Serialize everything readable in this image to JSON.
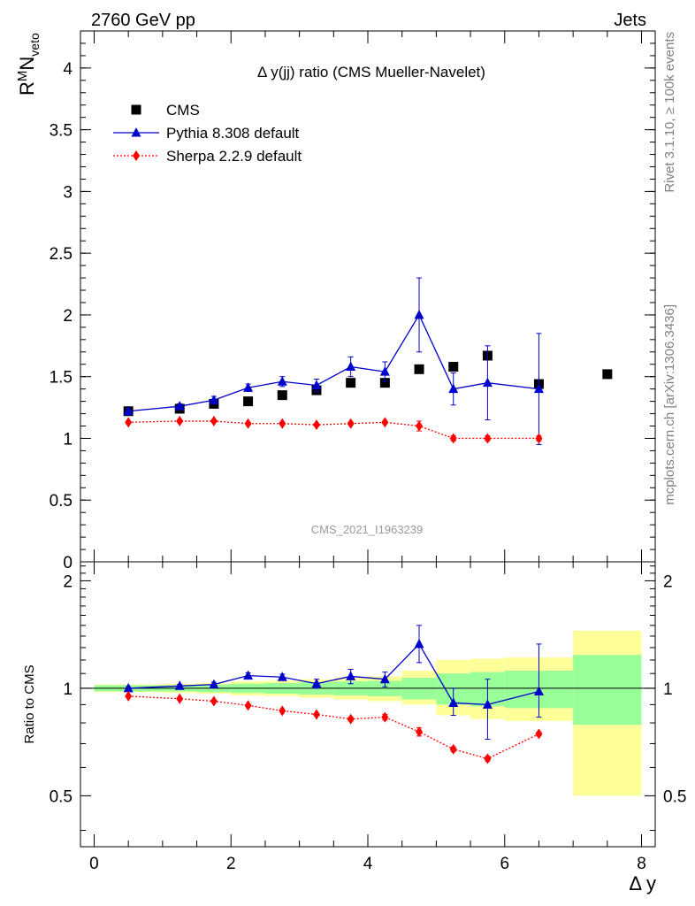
{
  "header": {
    "left": "2760 GeV pp",
    "right": "Jets",
    "side_top": "Rivet 3.1.10, ≥ 100k events",
    "side_bottom": "mcplots.cern.ch [arXiv:1306.3436]"
  },
  "chart_data": {
    "type": "scatter",
    "title": "Δ y(jj) ratio (CMS Mueller-Navelet)",
    "watermark": "CMS_2021_I1963239",
    "xlabel": "Δ y",
    "ylabel": "R^M N_veto",
    "ylabel_parts": {
      "base": "R",
      "sup": "M",
      "main": "N",
      "sub": "veto"
    },
    "ratio_ylabel": "Ratio to CMS",
    "xlim": [
      -0.2,
      8.2
    ],
    "ylim": [
      0,
      4.3
    ],
    "ratio_ylim": [
      0.36,
      2.26
    ],
    "x_ticks": [
      0,
      2,
      4,
      6,
      8
    ],
    "x_tick_labels": [
      "0",
      "2",
      "4",
      "6",
      "8"
    ],
    "y_ticks": [
      0,
      0.5,
      1,
      1.5,
      2,
      2.5,
      3,
      3.5,
      4
    ],
    "y_tick_labels": [
      "0",
      "0.5",
      "1",
      "1.5",
      "2",
      "2.5",
      "3",
      "3.5",
      "4"
    ],
    "ratio_ticks": [
      0.5,
      1,
      2
    ],
    "ratio_tick_labels": [
      "0.5",
      "1",
      "2"
    ],
    "legend": {
      "placement": "top-left"
    },
    "series": [
      {
        "name": "CMS",
        "marker": "square",
        "color": "#000000",
        "x": [
          0.5,
          1.25,
          1.75,
          2.25,
          2.75,
          3.25,
          3.75,
          4.25,
          4.75,
          5.25,
          5.75,
          6.5,
          7.5
        ],
        "y": [
          1.22,
          1.24,
          1.28,
          1.3,
          1.35,
          1.39,
          1.45,
          1.45,
          1.56,
          1.58,
          1.67,
          1.44,
          1.52
        ]
      },
      {
        "name": "Pythia 8.308 default",
        "marker": "triangle",
        "color": "#0000cc",
        "line": "solid",
        "x": [
          0.5,
          1.25,
          1.75,
          2.25,
          2.75,
          3.25,
          3.75,
          4.25,
          4.75,
          5.25,
          5.75,
          6.5
        ],
        "y": [
          1.22,
          1.26,
          1.31,
          1.41,
          1.46,
          1.43,
          1.58,
          1.54,
          2.0,
          1.4,
          1.45,
          1.4
        ],
        "err": [
          0.02,
          0.02,
          0.03,
          0.03,
          0.04,
          0.05,
          0.08,
          0.08,
          0.3,
          0.13,
          0.3,
          0.45
        ]
      },
      {
        "name": "Sherpa 2.2.9 default",
        "marker": "diamond",
        "color": "#ff0000",
        "line": "dotted",
        "x": [
          0.5,
          1.25,
          1.75,
          2.25,
          2.75,
          3.25,
          3.75,
          4.25,
          4.75,
          5.25,
          5.75,
          6.5
        ],
        "y": [
          1.13,
          1.14,
          1.14,
          1.12,
          1.12,
          1.11,
          1.12,
          1.13,
          1.1,
          1.0,
          1.0,
          1.0
        ],
        "err": [
          0.01,
          0.01,
          0.01,
          0.01,
          0.01,
          0.01,
          0.01,
          0.01,
          0.04,
          0.02,
          0.02,
          0.02
        ]
      }
    ],
    "ratio": {
      "reference": 1,
      "bins": [
        0,
        1,
        1.5,
        2,
        2.5,
        3,
        3.5,
        4,
        4.5,
        5,
        5.5,
        6,
        7,
        8
      ],
      "band_green": [
        [
          0.98,
          1.02
        ],
        [
          0.98,
          1.02
        ],
        [
          0.975,
          1.025
        ],
        [
          0.97,
          1.03
        ],
        [
          0.965,
          1.035
        ],
        [
          0.96,
          1.04
        ],
        [
          0.955,
          1.045
        ],
        [
          0.95,
          1.05
        ],
        [
          0.93,
          1.07
        ],
        [
          0.9,
          1.1
        ],
        [
          0.89,
          1.11
        ],
        [
          0.88,
          1.12
        ],
        [
          0.79,
          1.24
        ]
      ],
      "band_yellow": [
        [
          0.975,
          1.025
        ],
        [
          0.97,
          1.03
        ],
        [
          0.965,
          1.035
        ],
        [
          0.955,
          1.045
        ],
        [
          0.95,
          1.05
        ],
        [
          0.94,
          1.06
        ],
        [
          0.93,
          1.07
        ],
        [
          0.92,
          1.08
        ],
        [
          0.9,
          1.12
        ],
        [
          0.84,
          1.2
        ],
        [
          0.82,
          1.21
        ],
        [
          0.81,
          1.22
        ],
        [
          0.5,
          1.45
        ]
      ],
      "pythia": {
        "y": [
          1.0,
          1.015,
          1.025,
          1.085,
          1.075,
          1.03,
          1.08,
          1.06,
          1.33,
          0.91,
          0.9,
          0.98
        ],
        "err_lo": [
          0.01,
          0.01,
          0.015,
          0.02,
          0.02,
          0.03,
          0.05,
          0.05,
          0.15,
          0.07,
          0.18,
          0.15
        ],
        "err_hi": [
          0.01,
          0.01,
          0.015,
          0.02,
          0.02,
          0.03,
          0.05,
          0.05,
          0.17,
          0.09,
          0.16,
          0.35
        ]
      },
      "sherpa": {
        "y": [
          0.95,
          0.935,
          0.92,
          0.895,
          0.865,
          0.845,
          0.82,
          0.83,
          0.755,
          0.675,
          0.635,
          0.745
        ],
        "err": [
          0.005,
          0.005,
          0.005,
          0.005,
          0.005,
          0.005,
          0.01,
          0.015,
          0.02,
          0.01,
          0.01,
          0.01
        ]
      }
    }
  }
}
